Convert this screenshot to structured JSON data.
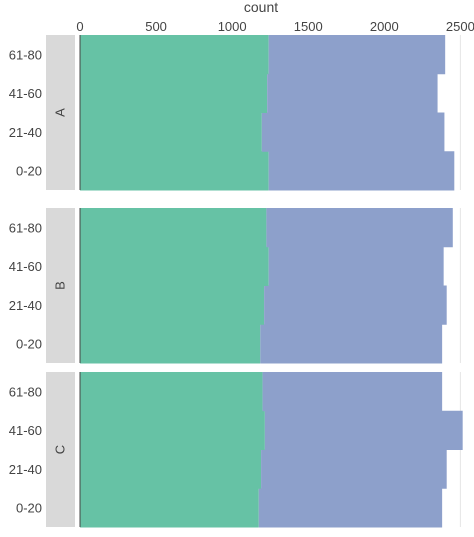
{
  "chart_data": {
    "type": "bar",
    "orientation": "horizontal",
    "barmode": "stack",
    "xlabel": "count",
    "xlim": [
      0,
      2550
    ],
    "xticks": [
      0,
      500,
      1000,
      1500,
      2000,
      2500
    ],
    "xtick_labels": [
      "0",
      "500",
      "1000",
      "1500",
      "2000",
      "2500"
    ],
    "grid": true,
    "categories": [
      "0-20",
      "21-40",
      "41-60",
      "61-80"
    ],
    "facets": [
      {
        "label": "A",
        "series": [
          {
            "color": "#66c2a5",
            "values": [
              1240,
              1195,
              1230,
              1240
            ]
          },
          {
            "color": "#8da0cb",
            "values": [
              1220,
              1200,
              1120,
              1160
            ]
          }
        ]
      },
      {
        "label": "B",
        "series": [
          {
            "color": "#66c2a5",
            "values": [
              1185,
              1210,
              1240,
              1225
            ]
          },
          {
            "color": "#8da0cb",
            "values": [
              1195,
              1200,
              1150,
              1225
            ]
          }
        ]
      },
      {
        "label": "C",
        "series": [
          {
            "color": "#66c2a5",
            "values": [
              1175,
              1190,
              1215,
              1200
            ]
          },
          {
            "color": "#8da0cb",
            "values": [
              1205,
              1220,
              1300,
              1180
            ]
          }
        ]
      }
    ]
  }
}
